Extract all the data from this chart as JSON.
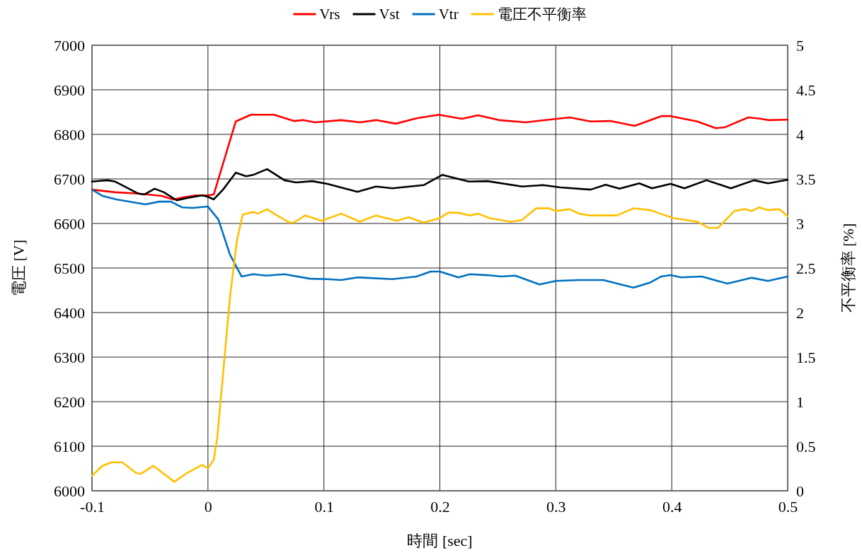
{
  "chart_data": {
    "type": "line",
    "xlabel": "時間 [sec]",
    "ylabel": "電圧 [V]",
    "y2label": "不平衡率 [%]",
    "xlim": [
      -0.1,
      0.5
    ],
    "xticks": [
      -0.1,
      0,
      0.1,
      0.2,
      0.3,
      0.4,
      0.5
    ],
    "ylim": [
      6000,
      7000
    ],
    "yticks": [
      6000,
      6100,
      6200,
      6300,
      6400,
      6500,
      6600,
      6700,
      6800,
      6900,
      7000
    ],
    "y2lim": [
      0,
      5
    ],
    "y2ticks": [
      0,
      0.5,
      1,
      1.5,
      2,
      2.5,
      3,
      3.5,
      4,
      4.5,
      5
    ],
    "grid": true,
    "legend": "top",
    "marker": "none",
    "line_style": "solid",
    "series": [
      {
        "name": "Vrs",
        "color": "#ff0000",
        "x": [
          -0.1,
          -0.08,
          -0.06,
          -0.04,
          -0.03,
          -0.02,
          -0.01,
          0,
          0.005,
          0.024,
          0.037,
          0.057,
          0.074,
          0.082,
          0.092,
          0.115,
          0.131,
          0.145,
          0.162,
          0.18,
          0.199,
          0.219,
          0.233,
          0.251,
          0.274,
          0.294,
          0.312,
          0.33,
          0.347,
          0.368,
          0.391,
          0.399,
          0.422,
          0.438,
          0.446,
          0.466,
          0.477,
          0.483,
          0.5
        ],
        "values": [
          6676,
          6670,
          6667,
          6662,
          6654,
          6659,
          6663,
          6663,
          6665,
          6829,
          6844,
          6844,
          6830,
          6832,
          6827,
          6832,
          6827,
          6832,
          6824,
          6836,
          6844,
          6835,
          6843,
          6832,
          6827,
          6833,
          6838,
          6829,
          6830,
          6819,
          6841,
          6841,
          6829,
          6814,
          6816,
          6838,
          6835,
          6832,
          6833
        ]
      },
      {
        "name": "Vst",
        "color": "#000000",
        "x": [
          -0.1,
          -0.087,
          -0.08,
          -0.072,
          -0.06,
          -0.055,
          -0.046,
          -0.038,
          -0.027,
          -0.018,
          -0.005,
          0,
          0.005,
          0.013,
          0.024,
          0.033,
          0.039,
          0.051,
          0.066,
          0.076,
          0.09,
          0.103,
          0.129,
          0.145,
          0.159,
          0.186,
          0.202,
          0.225,
          0.241,
          0.271,
          0.289,
          0.304,
          0.33,
          0.343,
          0.355,
          0.372,
          0.383,
          0.399,
          0.411,
          0.43,
          0.451,
          0.471,
          0.483,
          0.5
        ],
        "values": [
          6694,
          6697,
          6694,
          6683,
          6667,
          6665,
          6678,
          6670,
          6652,
          6657,
          6663,
          6660,
          6654,
          6676,
          6714,
          6706,
          6709,
          6722,
          6697,
          6692,
          6695,
          6689,
          6671,
          6683,
          6679,
          6686,
          6709,
          6694,
          6695,
          6683,
          6686,
          6681,
          6676,
          6687,
          6678,
          6690,
          6679,
          6689,
          6679,
          6697,
          6679,
          6697,
          6690,
          6698
        ]
      },
      {
        "name": "Vtr",
        "color": "#0070c0",
        "x": [
          -0.1,
          -0.091,
          -0.079,
          -0.054,
          -0.042,
          -0.032,
          -0.022,
          -0.013,
          0,
          0.009,
          0.019,
          0.029,
          0.039,
          0.05,
          0.066,
          0.088,
          0.103,
          0.115,
          0.129,
          0.159,
          0.18,
          0.192,
          0.2,
          0.216,
          0.226,
          0.241,
          0.253,
          0.265,
          0.286,
          0.3,
          0.32,
          0.341,
          0.35,
          0.367,
          0.381,
          0.391,
          0.399,
          0.408,
          0.426,
          0.448,
          0.469,
          0.483,
          0.5
        ],
        "values": [
          6676,
          6662,
          6654,
          6643,
          6649,
          6649,
          6636,
          6635,
          6638,
          6609,
          6530,
          6481,
          6486,
          6483,
          6486,
          6476,
          6475,
          6473,
          6479,
          6475,
          6481,
          6492,
          6492,
          6479,
          6486,
          6484,
          6481,
          6483,
          6463,
          6471,
          6473,
          6473,
          6467,
          6456,
          6467,
          6481,
          6484,
          6479,
          6481,
          6465,
          6478,
          6471,
          6481
        ]
      },
      {
        "name": "電圧不平衡率",
        "color": "#ffc000",
        "axis": "y2",
        "x": [
          -0.1,
          -0.091,
          -0.083,
          -0.074,
          -0.062,
          -0.058,
          -0.047,
          -0.029,
          -0.018,
          -0.005,
          0,
          0.005,
          0.008,
          0.019,
          0.025,
          0.03,
          0.039,
          0.043,
          0.051,
          0.057,
          0.07,
          0.074,
          0.084,
          0.098,
          0.115,
          0.131,
          0.145,
          0.163,
          0.173,
          0.186,
          0.2,
          0.207,
          0.216,
          0.226,
          0.233,
          0.243,
          0.261,
          0.271,
          0.283,
          0.294,
          0.3,
          0.312,
          0.32,
          0.33,
          0.353,
          0.367,
          0.381,
          0.39,
          0.402,
          0.422,
          0.432,
          0.44,
          0.454,
          0.463,
          0.469,
          0.475,
          0.483,
          0.493,
          0.5
        ],
        "values": [
          0.17,
          0.28,
          0.32,
          0.32,
          0.2,
          0.19,
          0.28,
          0.1,
          0.2,
          0.29,
          0.25,
          0.35,
          0.59,
          2.17,
          2.81,
          3.1,
          3.13,
          3.11,
          3.16,
          3.11,
          3.01,
          3.01,
          3.09,
          3.03,
          3.11,
          3.02,
          3.09,
          3.03,
          3.07,
          3.01,
          3.06,
          3.12,
          3.12,
          3.09,
          3.11,
          3.06,
          3.02,
          3.04,
          3.17,
          3.17,
          3.14,
          3.16,
          3.11,
          3.09,
          3.09,
          3.17,
          3.15,
          3.11,
          3.06,
          3.02,
          2.95,
          2.95,
          3.14,
          3.16,
          3.14,
          3.18,
          3.15,
          3.16,
          3.08
        ]
      }
    ]
  }
}
